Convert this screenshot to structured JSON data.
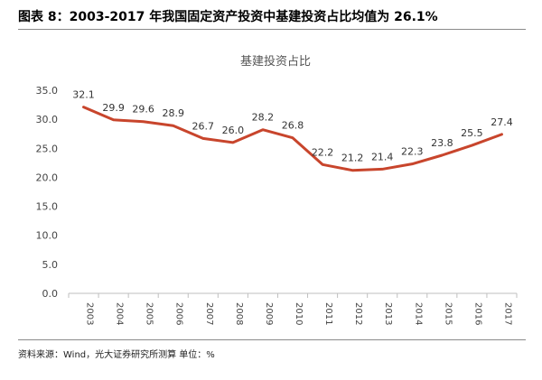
{
  "figure": {
    "title": "图表 8：2003-2017 年我国固定资产投资中基建投资占比均值为 26.1%",
    "source": "资料来源：Wind，光大证券研究所测算    单位：%"
  },
  "chart_data": {
    "type": "line",
    "title": "基建投资占比",
    "xlabel": "",
    "ylabel": "",
    "x": [
      "2003",
      "2004",
      "2005",
      "2006",
      "2007",
      "2008",
      "2009",
      "2010",
      "2011",
      "2012",
      "2013",
      "2014",
      "2015",
      "2016",
      "2017"
    ],
    "series": [
      {
        "values": [
          32.1,
          29.9,
          29.6,
          28.9,
          26.7,
          26.0,
          28.2,
          26.8,
          22.2,
          21.2,
          21.4,
          22.3,
          23.8,
          25.5,
          27.4
        ]
      }
    ],
    "ylim": [
      0,
      35
    ],
    "yticks": [
      "0.0",
      "5.0",
      "10.0",
      "15.0",
      "20.0",
      "25.0",
      "30.0",
      "35.0"
    ],
    "line_color": "#c8452c",
    "grid": false,
    "legend": "none"
  }
}
